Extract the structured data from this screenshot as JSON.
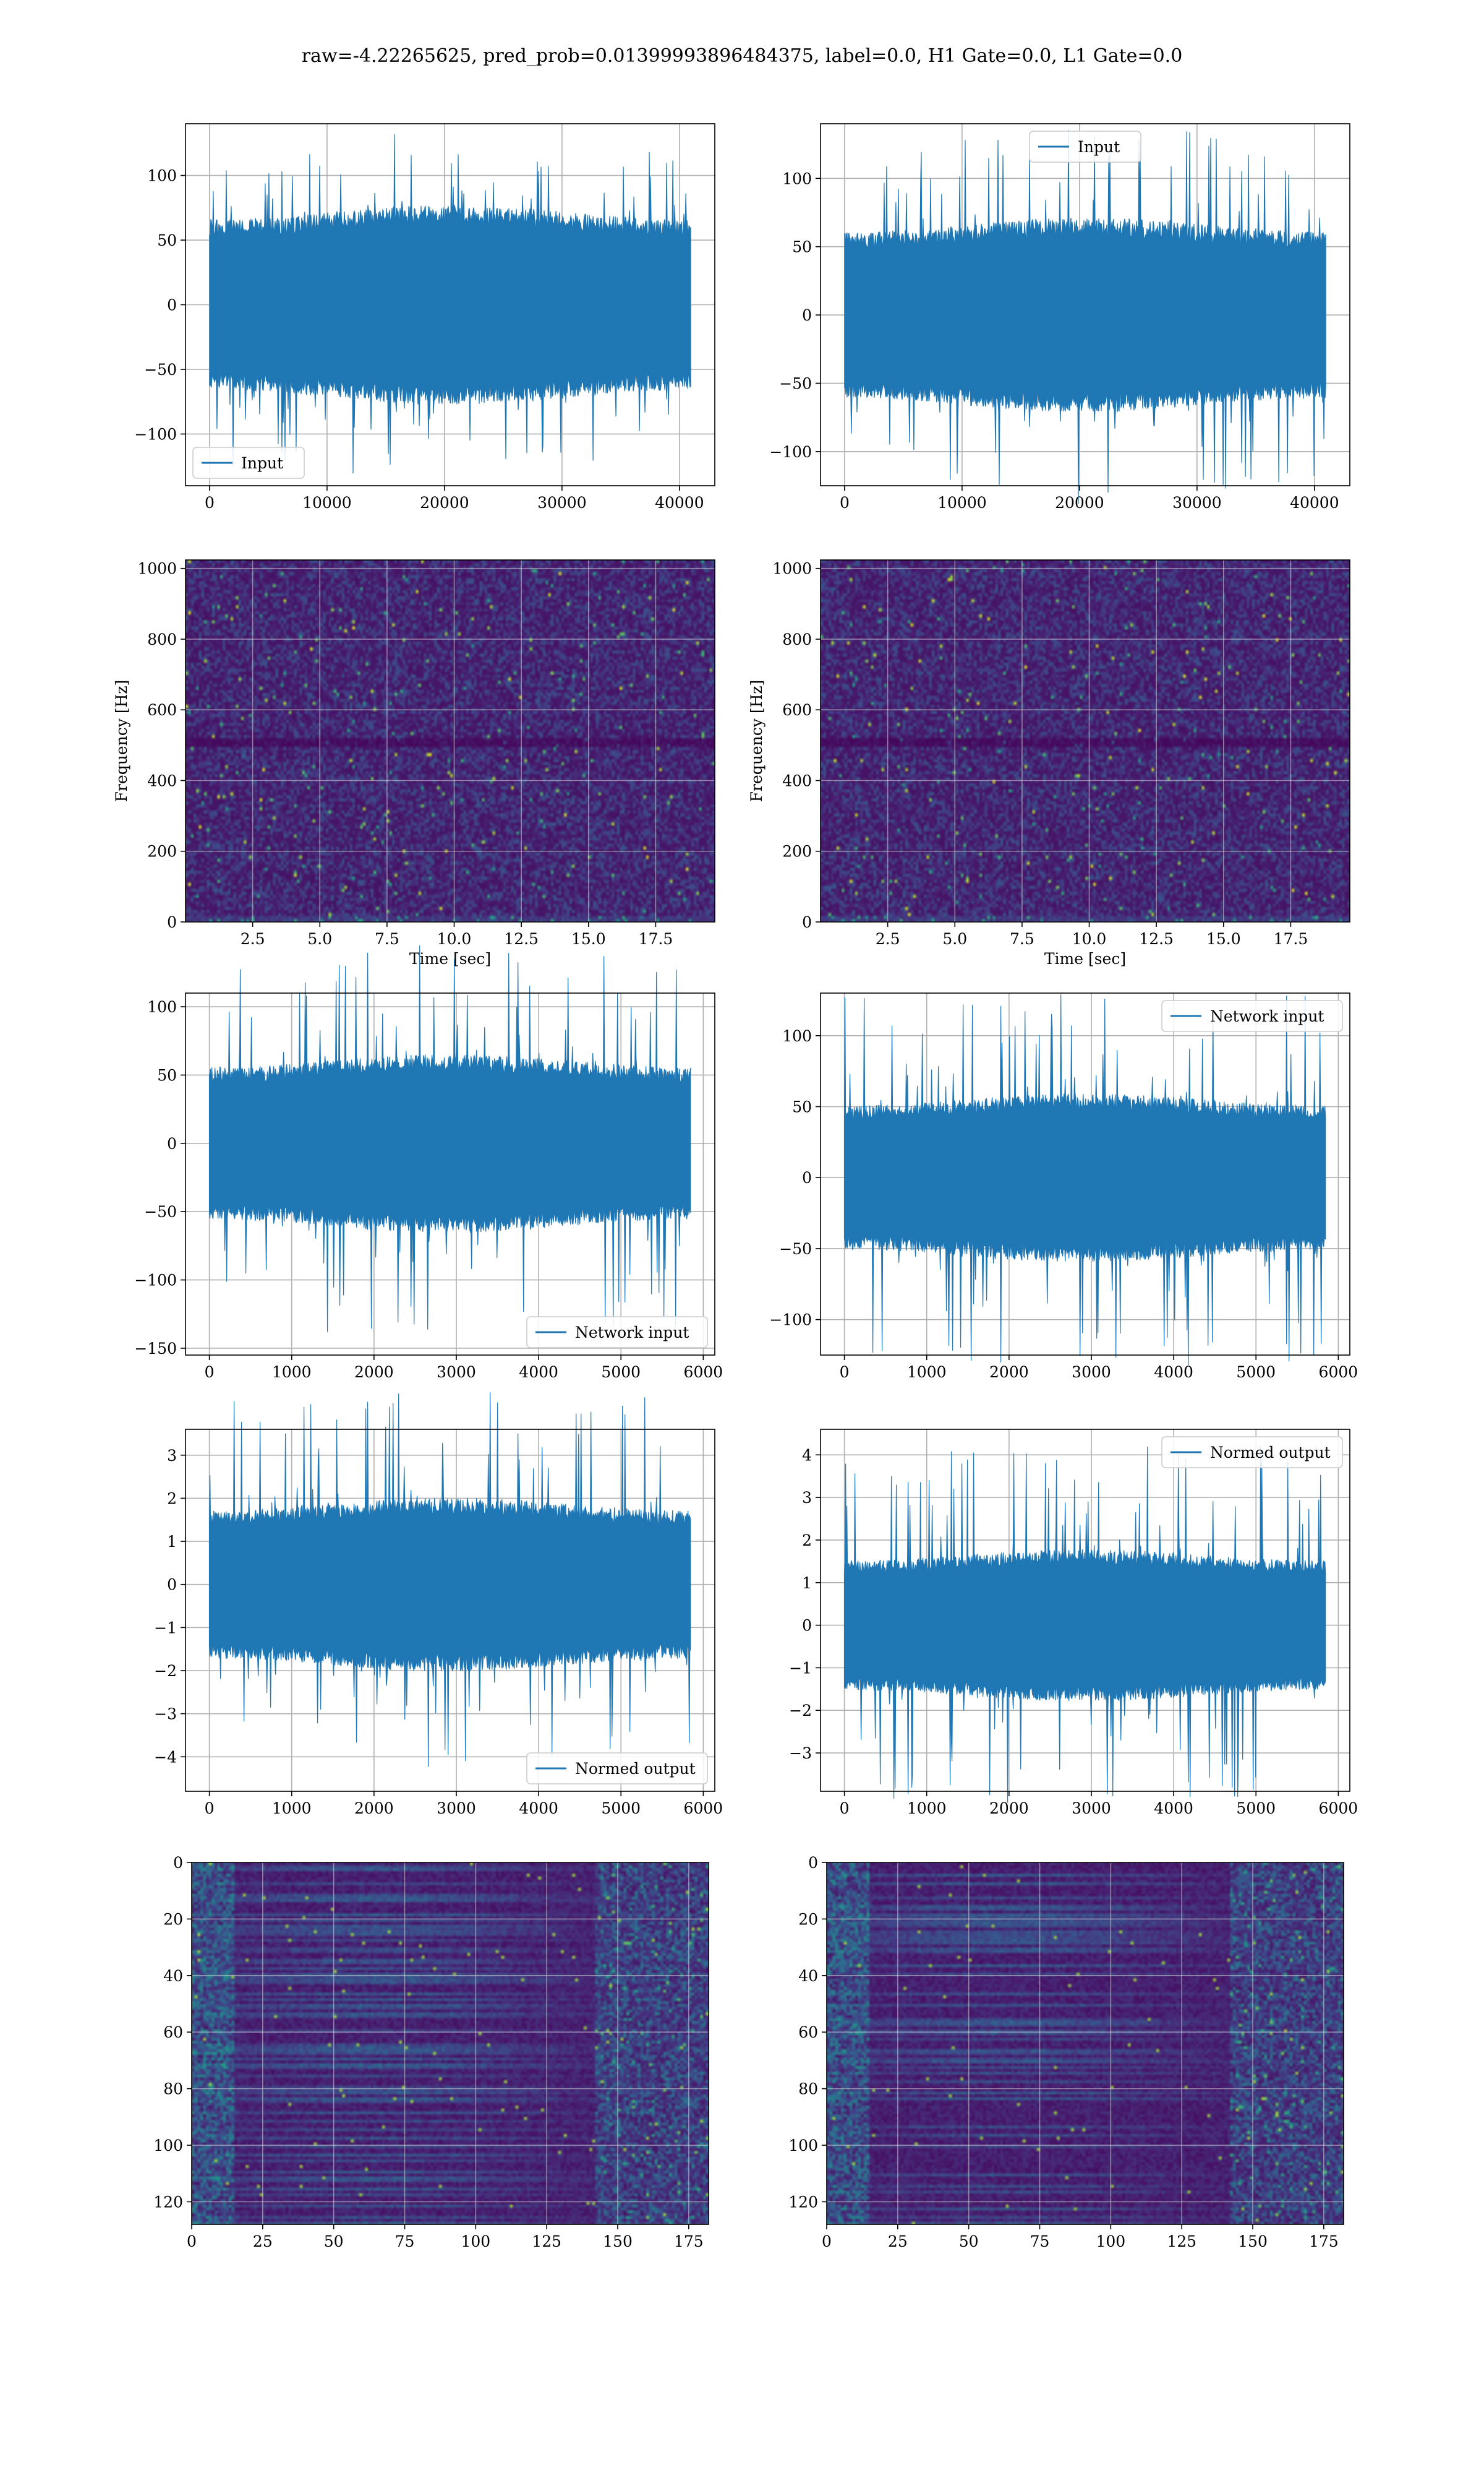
{
  "suptitle": "raw=-4.22265625, pred_prob=0.01399993896484375, label=0.0, H1 Gate=0.0, L1 Gate=0.0",
  "colors": {
    "line": "#1f77b4",
    "viridis_low": "#440154",
    "viridis_high": "#fde725"
  },
  "chart_data": [
    {
      "id": "input-h1",
      "type": "line",
      "series": [
        {
          "name": "Input",
          "amp_typical": 65,
          "amp_peak": 125,
          "n": 40960
        }
      ],
      "xlim": [
        -2048,
        43008
      ],
      "ylim": [
        -140,
        140
      ],
      "xticks": [
        0,
        10000,
        20000,
        30000,
        40000
      ],
      "yticks": [
        -100,
        -50,
        0,
        50,
        100
      ],
      "xlabel": "",
      "ylabel": "",
      "legend": "lower-left",
      "grid": true
    },
    {
      "id": "input-l1",
      "type": "line",
      "series": [
        {
          "name": "Input",
          "amp_typical": 60,
          "amp_peak": 135,
          "n": 40960
        }
      ],
      "xlim": [
        -2048,
        43008
      ],
      "ylim": [
        -125,
        140
      ],
      "xticks": [
        0,
        10000,
        20000,
        30000,
        40000
      ],
      "yticks": [
        -100,
        -50,
        0,
        50,
        100
      ],
      "xlabel": "",
      "ylabel": "",
      "legend": "upper-center",
      "grid": true
    },
    {
      "id": "spec-h1",
      "type": "heatmap",
      "xlim": [
        0,
        19.7
      ],
      "ylim": [
        0,
        1024
      ],
      "xticks": [
        2.5,
        5.0,
        7.5,
        10.0,
        12.5,
        15.0,
        17.5
      ],
      "yticks": [
        0,
        200,
        400,
        600,
        800,
        1000
      ],
      "xlabel": "Time [sec]",
      "ylabel": "Frequency [Hz]",
      "grid": true
    },
    {
      "id": "spec-l1",
      "type": "heatmap",
      "xlim": [
        0,
        19.7
      ],
      "ylim": [
        0,
        1024
      ],
      "xticks": [
        2.5,
        5.0,
        7.5,
        10.0,
        12.5,
        15.0,
        17.5
      ],
      "yticks": [
        0,
        200,
        400,
        600,
        800,
        1000
      ],
      "xlabel": "Time [sec]",
      "ylabel": "Frequency [Hz]",
      "grid": true
    },
    {
      "id": "net-h1",
      "type": "line",
      "series": [
        {
          "name": "Network input",
          "amp_typical": 55,
          "amp_peak": 140,
          "n": 5845
        }
      ],
      "xlim": [
        -290,
        6140
      ],
      "ylim": [
        -155,
        110
      ],
      "xticks": [
        0,
        1000,
        2000,
        3000,
        4000,
        5000,
        6000
      ],
      "yticks": [
        -150,
        -100,
        -50,
        0,
        50,
        100
      ],
      "xlabel": "",
      "ylabel": "",
      "legend": "lower-right",
      "grid": true
    },
    {
      "id": "net-l1",
      "type": "line",
      "series": [
        {
          "name": "Network input",
          "amp_typical": 50,
          "amp_peak": 130,
          "n": 5845
        }
      ],
      "xlim": [
        -290,
        6140
      ],
      "ylim": [
        -125,
        130
      ],
      "xticks": [
        0,
        1000,
        2000,
        3000,
        4000,
        5000,
        6000
      ],
      "yticks": [
        -100,
        -50,
        0,
        50,
        100
      ],
      "xlabel": "",
      "ylabel": "",
      "legend": "upper-right",
      "grid": true
    },
    {
      "id": "norm-h1",
      "type": "line",
      "series": [
        {
          "name": "Normed output",
          "amp_typical": 1.7,
          "amp_peak": 4.4,
          "n": 5845
        }
      ],
      "xlim": [
        -290,
        6140
      ],
      "ylim": [
        -4.8,
        3.6
      ],
      "xticks": [
        0,
        1000,
        2000,
        3000,
        4000,
        5000,
        6000
      ],
      "yticks": [
        -4,
        -3,
        -2,
        -1,
        0,
        1,
        2,
        3
      ],
      "xlabel": "",
      "ylabel": "",
      "legend": "lower-right",
      "grid": true
    },
    {
      "id": "norm-l1",
      "type": "line",
      "series": [
        {
          "name": "Normed output",
          "amp_typical": 1.5,
          "amp_peak": 4.2,
          "n": 5845
        }
      ],
      "xlim": [
        -290,
        6140
      ],
      "ylim": [
        -3.9,
        4.6
      ],
      "xticks": [
        0,
        1000,
        2000,
        3000,
        4000,
        5000,
        6000
      ],
      "yticks": [
        -3,
        -2,
        -1,
        0,
        1,
        2,
        3,
        4
      ],
      "xlabel": "",
      "ylabel": "",
      "legend": "upper-right",
      "grid": true
    },
    {
      "id": "feat-h1",
      "type": "heatmap",
      "xlim": [
        0,
        182
      ],
      "ylim": [
        128,
        0
      ],
      "xticks": [
        0,
        25,
        50,
        75,
        100,
        125,
        150,
        175
      ],
      "yticks": [
        0,
        20,
        40,
        60,
        80,
        100,
        120
      ],
      "xlabel": "",
      "ylabel": "",
      "grid": true
    },
    {
      "id": "feat-l1",
      "type": "heatmap",
      "xlim": [
        0,
        182
      ],
      "ylim": [
        128,
        0
      ],
      "xticks": [
        0,
        25,
        50,
        75,
        100,
        125,
        150,
        175
      ],
      "yticks": [
        0,
        20,
        40,
        60,
        80,
        100,
        120
      ],
      "xlabel": "",
      "ylabel": "",
      "grid": true
    }
  ]
}
